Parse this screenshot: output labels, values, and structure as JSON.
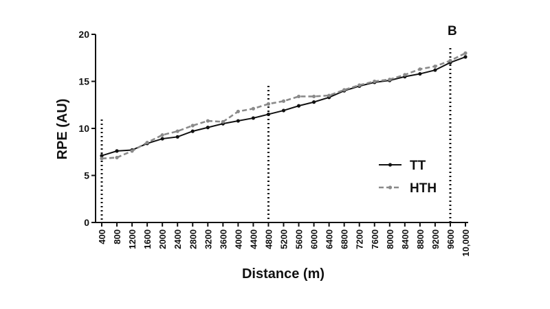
{
  "chart_data": {
    "type": "line",
    "panel_label": "B",
    "xlabel": "Distance (m)",
    "ylabel": "RPE (AU)",
    "ylim": [
      0,
      20
    ],
    "yticks": [
      0,
      5,
      10,
      15,
      20
    ],
    "categories": [
      "400",
      "800",
      "1200",
      "1600",
      "2000",
      "2400",
      "2800",
      "3200",
      "3600",
      "4000",
      "4400",
      "4800",
      "5200",
      "5600",
      "6000",
      "6400",
      "6800",
      "7200",
      "7600",
      "8000",
      "8400",
      "8800",
      "9200",
      "9600",
      "10,000"
    ],
    "reference_lines_at": [
      "400",
      "4800",
      "9600"
    ],
    "legend_position": "right",
    "series": [
      {
        "name": "TT",
        "style": "solid",
        "color": "#111111",
        "values": [
          7.1,
          7.6,
          7.7,
          8.4,
          8.9,
          9.1,
          9.7,
          10.1,
          10.5,
          10.8,
          11.1,
          11.5,
          11.9,
          12.4,
          12.8,
          13.3,
          14.0,
          14.5,
          14.9,
          15.1,
          15.5,
          15.8,
          16.2,
          17.0,
          17.6
        ]
      },
      {
        "name": "HTH",
        "style": "dashed",
        "color": "#8a8a8a",
        "values": [
          6.8,
          6.9,
          7.6,
          8.5,
          9.3,
          9.7,
          10.3,
          10.8,
          10.7,
          11.8,
          12.1,
          12.6,
          12.9,
          13.4,
          13.4,
          13.5,
          14.1,
          14.6,
          15.0,
          15.2,
          15.7,
          16.3,
          16.6,
          17.2,
          18.0
        ]
      }
    ]
  }
}
